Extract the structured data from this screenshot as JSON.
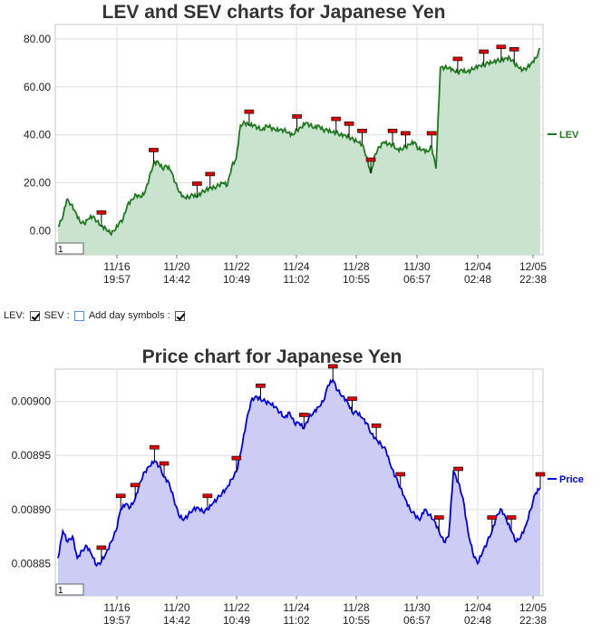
{
  "chart_data": [
    {
      "type": "area",
      "title": "LEV and SEV charts for Japanese Yen",
      "x_ticks": [
        {
          "date": "11/16",
          "time": "19:57"
        },
        {
          "date": "11/20",
          "time": "14:42"
        },
        {
          "date": "11/22",
          "time": "10:49"
        },
        {
          "date": "11/24",
          "time": "11:02"
        },
        {
          "date": "11/28",
          "time": "10:55"
        },
        {
          "date": "11/30",
          "time": "06:57"
        },
        {
          "date": "12/04",
          "time": "02:48"
        },
        {
          "date": "12/05",
          "time": "22:38"
        }
      ],
      "y_ticks": [
        "0.00",
        "20.00",
        "40.00",
        "60.00",
        "80.00"
      ],
      "ylim": [
        -10,
        86
      ],
      "series": [
        {
          "name": "LEV",
          "color": "#1f7a1f",
          "fill": "#c9e3cf",
          "values": [
            2,
            5,
            13,
            11,
            8,
            4,
            3,
            5,
            6,
            4,
            2,
            1,
            -1,
            0,
            3,
            5,
            11,
            13,
            15,
            14,
            16,
            22,
            28,
            29,
            26,
            27,
            25,
            20,
            16,
            14,
            14,
            15,
            14,
            16,
            17,
            18,
            18,
            19,
            20,
            19,
            27,
            30,
            44,
            45,
            44,
            44,
            43,
            42,
            44,
            43,
            42,
            42,
            42,
            41,
            40,
            42,
            43,
            45,
            44,
            43,
            44,
            42,
            42,
            41,
            41,
            40,
            40,
            39,
            38,
            37,
            36,
            31,
            24,
            32,
            35,
            37,
            36,
            36,
            34,
            34,
            35,
            36,
            37,
            34,
            34,
            33,
            35,
            26,
            68,
            68,
            68,
            67,
            66,
            67,
            66,
            67,
            68,
            69,
            69,
            70,
            70,
            71,
            71,
            72,
            72,
            70,
            68,
            67,
            68,
            70,
            72,
            76
          ]
        }
      ],
      "input_box": "1"
    },
    {
      "type": "area",
      "title": "Price chart for Japanese Yen",
      "x_ticks": [
        {
          "date": "11/16",
          "time": "19:57"
        },
        {
          "date": "11/20",
          "time": "14:42"
        },
        {
          "date": "11/22",
          "time": "10:49"
        },
        {
          "date": "11/24",
          "time": "11:02"
        },
        {
          "date": "11/28",
          "time": "10:55"
        },
        {
          "date": "11/30",
          "time": "06:57"
        },
        {
          "date": "12/04",
          "time": "02:48"
        },
        {
          "date": "12/05",
          "time": "22:38"
        }
      ],
      "y_ticks": [
        "0.00885",
        "0.00890",
        "0.00895",
        "0.00900"
      ],
      "ylim": [
        0.00882,
        0.00903
      ],
      "series": [
        {
          "name": "Price",
          "color": "#0000ee",
          "fill": "#ccccf5",
          "values": [
            0.008855,
            0.00888,
            0.00887,
            0.008875,
            0.008855,
            0.008862,
            0.008866,
            0.008858,
            0.008848,
            0.008852,
            0.00886,
            0.00887,
            0.00888,
            0.0089,
            0.008905,
            0.008902,
            0.00891,
            0.008925,
            0.008935,
            0.00894,
            0.008945,
            0.00894,
            0.00893,
            0.008925,
            0.00891,
            0.008895,
            0.00889,
            0.008895,
            0.0089,
            0.008902,
            0.008898,
            0.0089,
            0.008905,
            0.00891,
            0.008915,
            0.00892,
            0.008928,
            0.008935,
            0.008955,
            0.00898,
            0.009,
            0.009005,
            0.009002,
            0.009,
            0.008998,
            0.008995,
            0.00899,
            0.008985,
            0.00899,
            0.00898,
            0.00898,
            0.008975,
            0.008985,
            0.00899,
            0.008995,
            0.009,
            0.009015,
            0.00902,
            0.00901,
            0.009005,
            0.009,
            0.00899,
            0.00899,
            0.008985,
            0.00898,
            0.00897,
            0.008965,
            0.00896,
            0.008955,
            0.00894,
            0.00893,
            0.00892,
            0.00891,
            0.0089,
            0.008895,
            0.00889,
            0.0089,
            0.008895,
            0.00889,
            0.00888,
            0.00887,
            0.008875,
            0.008935,
            0.008925,
            0.00891,
            0.00888,
            0.00886,
            0.00885,
            0.00886,
            0.00887,
            0.00888,
            0.008895,
            0.0089,
            0.00889,
            0.00888,
            0.00887,
            0.008875,
            0.008885,
            0.0089,
            0.008915,
            0.00892
          ]
        }
      ],
      "input_box": "1"
    }
  ],
  "controls": {
    "lev_label": "LEV:",
    "sev_label": "SEV :",
    "day_symbols_label": "Add day symbols :"
  }
}
